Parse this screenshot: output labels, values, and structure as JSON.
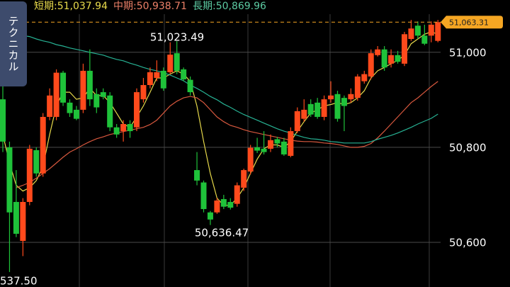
{
  "chart_data": {
    "type": "candlestick",
    "ylim": [
      50506,
      51110
    ],
    "yticks": [
      {
        "value": 51000,
        "label": "51,000"
      },
      {
        "value": 50800,
        "label": "50,800"
      },
      {
        "value": 50600,
        "label": "50,600"
      }
    ],
    "grid": true,
    "up_color": "#ff4a1c",
    "down_color": "#1fc23a",
    "open": [
      50901,
      50800,
      50685,
      50603,
      50685,
      50794,
      50745,
      50864,
      50864,
      50957,
      50894,
      50879,
      50879,
      50961,
      50912,
      50916,
      50909,
      50842,
      50834,
      50849,
      50842,
      50901,
      50931,
      50946,
      50961,
      50958,
      50998,
      50964,
      50942,
      50752,
      50726,
      50663,
      50663,
      50691,
      50685,
      50681,
      50715,
      50749,
      50800,
      50797,
      50797,
      50817,
      50812,
      50782,
      50834,
      50860,
      50891,
      50894,
      50864,
      50901,
      50912,
      50904,
      50901,
      50904,
      50939,
      50949,
      50994,
      51006,
      50976,
      50994,
      50976,
      51028,
      51056,
      51035,
      51035,
      51024
    ],
    "high": [
      50961,
      50812,
      50752,
      50693,
      50805,
      50800,
      50872,
      50924,
      50964,
      50961,
      50901,
      50887,
      50976,
      51006,
      50924,
      50924,
      50916,
      50849,
      50857,
      50857,
      50924,
      50946,
      50968,
      50983,
      50968,
      51021,
      51023.49,
      50968,
      50949,
      50790,
      50730,
      50666,
      50693,
      50700,
      50693,
      50726,
      50755,
      50805,
      50820,
      50834,
      50827,
      50822,
      50820,
      50842,
      50884,
      50901,
      50901,
      50904,
      50909,
      50939,
      50919,
      50909,
      50924,
      50954,
      50961,
      51006,
      51013,
      51013,
      51006,
      51003,
      51043,
      51068,
      51065,
      51058,
      51065,
      51068
    ],
    "low": [
      50790,
      50537.5,
      50611,
      50571,
      50678,
      50738,
      50738,
      50857,
      50857,
      50887,
      50864,
      50857,
      50872,
      50887,
      50872,
      50901,
      50834,
      50820,
      50812,
      50820,
      50834,
      50894,
      50924,
      50939,
      50919,
      50954,
      50954,
      50939,
      50909,
      50720,
      50663,
      50636.47,
      50660,
      50670,
      50669,
      50675,
      50708,
      50743,
      50788,
      50785,
      50790,
      50800,
      50782,
      50779,
      50830,
      50854,
      50864,
      50860,
      50857,
      50894,
      50854,
      50834,
      50894,
      50898,
      50934,
      50943,
      50991,
      50961,
      50968,
      50976,
      50971,
      51024,
      51028,
      51015,
      51021,
      51021
    ],
    "close": [
      50812,
      50663,
      50618,
      50685,
      50797,
      50745,
      50864,
      50909,
      50957,
      50894,
      50872,
      50860,
      50961,
      50901,
      50884,
      50906,
      50842,
      50827,
      50849,
      50834,
      50916,
      50931,
      50958,
      50958,
      50924,
      50995,
      50961,
      50943,
      50916,
      50730,
      50670,
      50648,
      50688,
      50675,
      50673,
      50720,
      50752,
      50799,
      50793,
      50790,
      50815,
      50808,
      50785,
      50834,
      50876,
      50879,
      50869,
      50864,
      50901,
      50909,
      50860,
      50887,
      50912,
      50949,
      50954,
      50998,
      51006,
      50968,
      50994,
      50980,
      51038,
      51050,
      51035,
      51018,
      51058,
      51063.31
    ],
    "ma": [
      {
        "name": "短期:",
        "last_label": "51,037.94",
        "color": "#eadc4c",
        "line_color": "#e6d84a",
        "values": [
          50827,
          50767,
          50720,
          50708,
          50715,
          50730,
          50760,
          50827,
          50887,
          50916,
          50916,
          50901,
          50904,
          50924,
          50909,
          50909,
          50894,
          50872,
          50849,
          50842,
          50864,
          50887,
          50916,
          50946,
          50946,
          50954,
          50961,
          50954,
          50939,
          50887,
          50812,
          50745,
          50693,
          50678,
          50678,
          50693,
          50715,
          50745,
          50775,
          50797,
          50805,
          50805,
          50800,
          50812,
          50834,
          50854,
          50872,
          50879,
          50887,
          50890,
          50894,
          50890,
          50894,
          50904,
          50919,
          50946,
          50961,
          50968,
          50976,
          50983,
          50994,
          51018,
          51028,
          51038,
          51043,
          51037.94
        ]
      },
      {
        "name": "中期:",
        "last_label": "50,938.71",
        "color": "#ec8068",
        "line_color": "#d8583e",
        "values": [
          null,
          null,
          50715,
          50720,
          50726,
          50735,
          50745,
          50755,
          50767,
          50779,
          50790,
          50797,
          50805,
          50812,
          50818,
          50822,
          50827,
          50830,
          50833,
          50836,
          50839,
          50842,
          50848,
          50857,
          50872,
          50887,
          50897,
          50904,
          50907,
          50904,
          50894,
          50879,
          50864,
          50854,
          50846,
          50842,
          50837,
          50833,
          50830,
          50827,
          50824,
          50821,
          50818,
          50815,
          50813,
          50812,
          50812,
          50811,
          50809,
          50808,
          50806,
          50803,
          50800,
          50800,
          50802,
          50808,
          50820,
          50834,
          50849,
          50864,
          50879,
          50894,
          50904,
          50916,
          50928,
          50938.71
        ]
      },
      {
        "name": "長期:",
        "last_label": "50,869.96",
        "color": "#5ccaa2",
        "line_color": "#27b294",
        "values": [
          51047,
          51043,
          51040,
          51035,
          51033,
          51028,
          51024,
          51021,
          51016,
          51013,
          51009,
          51006,
          51003,
          51000,
          50997,
          50994,
          50989,
          50985,
          50982,
          50977,
          50973,
          50968,
          50964,
          50961,
          50957,
          50952,
          50946,
          50940,
          50931,
          50924,
          50916,
          50907,
          50900,
          50891,
          50884,
          50876,
          50869,
          50863,
          50857,
          50851,
          50845,
          50839,
          50834,
          50830,
          50825,
          50821,
          50818,
          50817,
          50815,
          50812,
          50811,
          50809,
          50809,
          50809,
          50809,
          50812,
          50817,
          50821,
          50825,
          50830,
          50836,
          50842,
          50849,
          50855,
          50861,
          50869.96
        ]
      }
    ],
    "last_price": {
      "value": 51063.31,
      "label": "51,063.31"
    },
    "price_tag_color": "#f5a623",
    "high_label": "51,023.49",
    "low_label": "50,636.47",
    "edge_label": "537.50"
  },
  "tab_label": "テクニカル"
}
